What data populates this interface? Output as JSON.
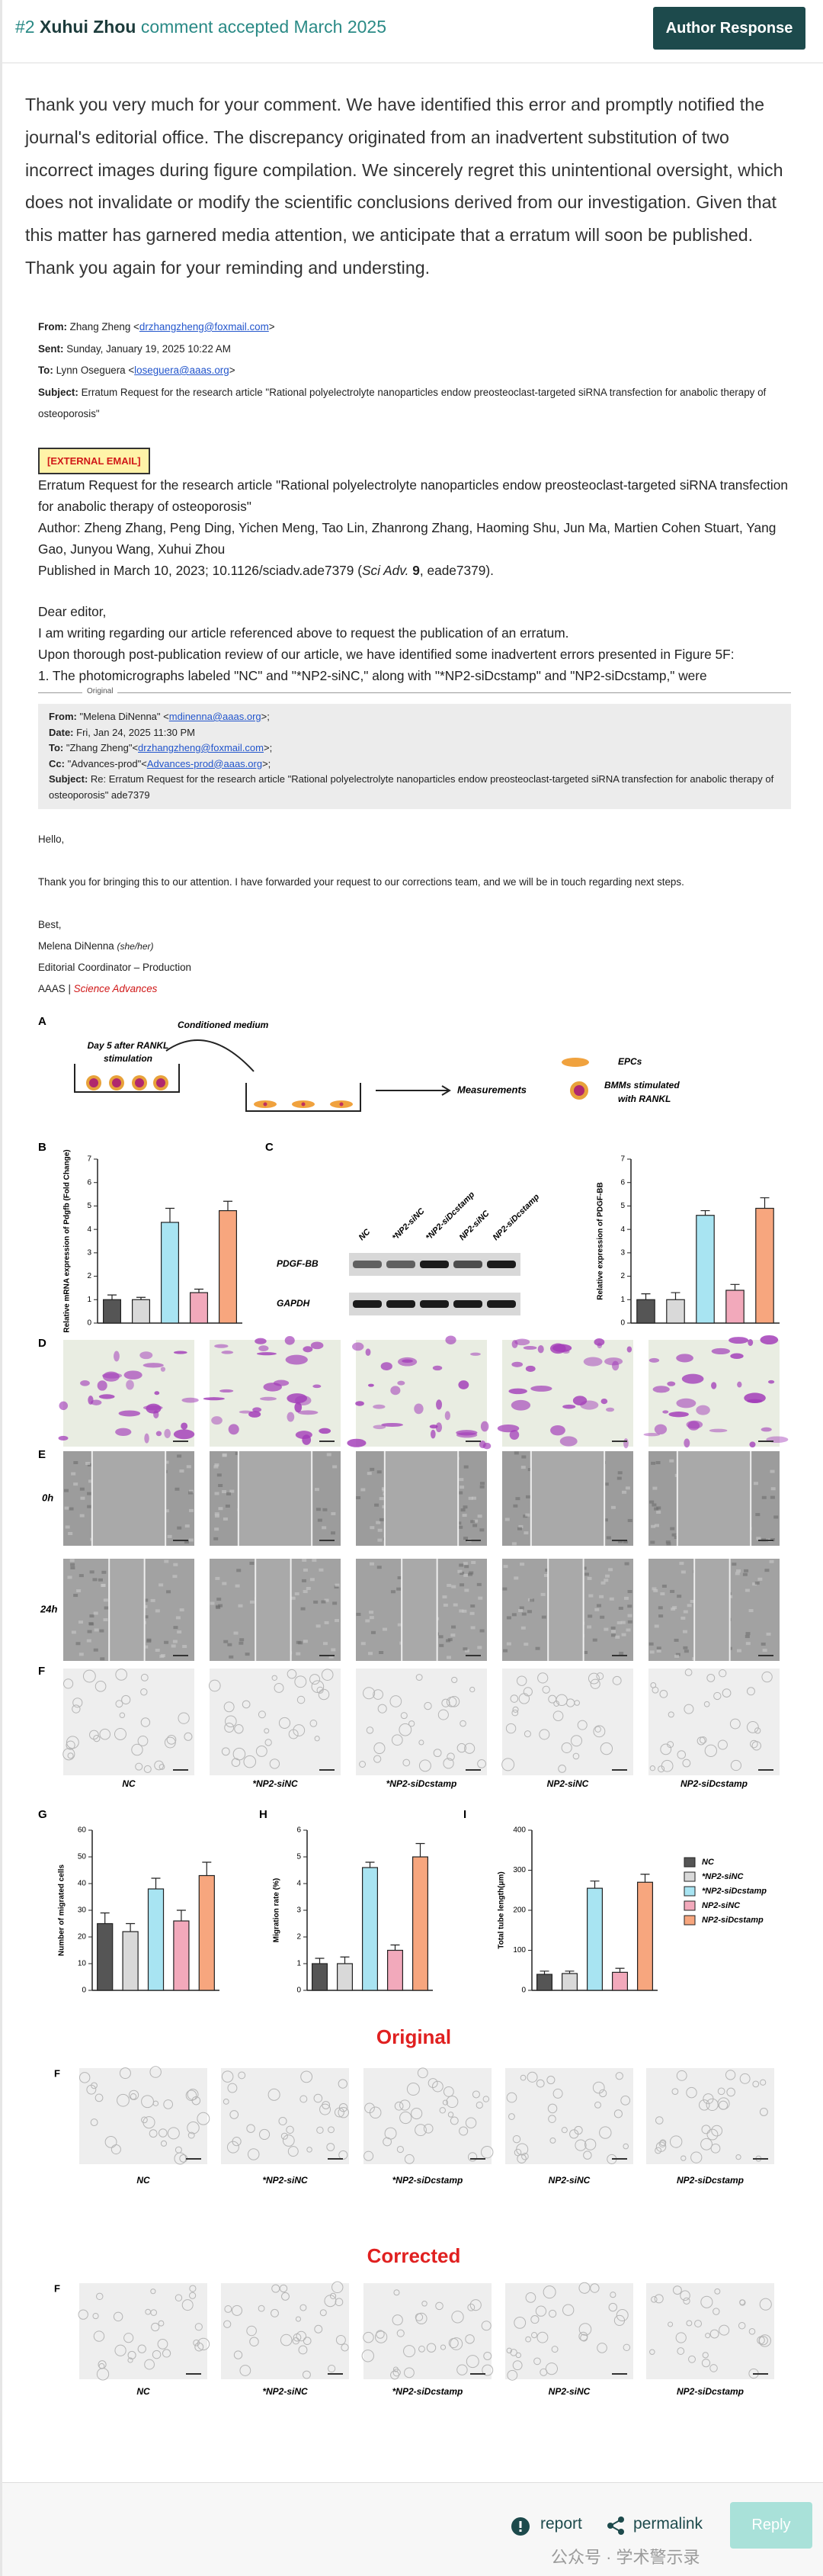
{
  "header": {
    "number": "#2",
    "author": "Xuhui Zhou",
    "status": "comment accepted March 2025",
    "button": "Author Response"
  },
  "comment": "Thank you very much for your comment. We have identified this error and promptly notified the journal's editorial office. The discrepancy originated from an inadvertent substitution of two incorrect images during figure compilation. We sincerely regret this unintentional oversight, which does not invalidate or modify the scientific conclusions derived from our investigation. Given that this matter has garnered media attention, we anticipate that a erratum will soon be published. Thank you again for your reminding and understing.",
  "email": {
    "rows": [
      {
        "label": "From:",
        "text": "Zhang Zheng <",
        "link": "drzhangzheng@foxmail.com",
        "close": ">"
      },
      {
        "label": "Sent:",
        "text": "Sunday, January 19, 2025 10:22 AM"
      },
      {
        "label": "To:",
        "text": "Lynn Oseguera <",
        "link": "loseguera@aaas.org",
        "close": ">"
      },
      {
        "label": "Subject:",
        "text": "Erratum Request for the research article \"Rational polyelectrolyte nanoparticles endow preosteoclast-targeted siRNA transfection for anabolic therapy of osteoporosis\""
      }
    ],
    "external_tag": "[EXTERNAL EMAIL]",
    "title": "Erratum Request for the research article \"Rational polyelectrolyte nanoparticles endow preosteoclast-targeted siRNA transfection for anabolic therapy of osteoporosis\"",
    "authors": "Author: Zheng Zhang, Peng Ding, Yichen Meng, Tao Lin, Zhanrong Zhang, Haoming Shu, Jun Ma, Martien Cohen Stuart, Yang Gao, Junyou Wang, Xuhui Zhou",
    "published": {
      "prefix": "Published in March 10, 2023; 10.1126/sciadv.ade7379 (",
      "journal": "Sci Adv.",
      "volume": "9",
      "suffix": ", eade7379)."
    },
    "letter": [
      "Dear editor,",
      "I am writing regarding our article referenced above to request the publication of an erratum.",
      "Upon thorough post-publication review of our article, we have identified some inadvertent errors presented in Figure 5F:",
      "1. The photomicrographs labeled \"NC\" and \"*NP2-siNC,\" along with \"*NP2-siDcstamp\" and \"NP2-siDcstamp,\" were"
    ],
    "divider": "Original"
  },
  "reply": {
    "rows": [
      {
        "label": "From:",
        "text": "\"Melena DiNenna\" <",
        "link": "mdinenna@aaas.org",
        "close": ">;"
      },
      {
        "label": "Date:",
        "text": "Fri, Jan 24, 2025 11:30 PM"
      },
      {
        "label": "To:",
        "text": "\"Zhang Zheng\"<",
        "link": "drzhangzheng@foxmail.com",
        "close": ">;"
      },
      {
        "label": "Cc:",
        "text": "\"Advances-prod\"<",
        "link": "Advances-prod@aaas.org",
        "close": ">;"
      },
      {
        "label": "Subject:",
        "text": "Re: Erratum Request for the research article \"Rational polyelectrolyte nanoparticles endow preosteoclast-targeted siRNA transfection for anabolic therapy of osteoporosis\" ade7379"
      }
    ],
    "greeting": "Hello,",
    "body": "Thank you for bringing this to our attention. I have forwarded your request to our corrections team, and we will be in touch regarding next steps.",
    "closing": "Best,",
    "name": "Melena DiNenna",
    "pronouns": "(she/her)",
    "role": "Editorial Coordinator – Production",
    "org": "AAAS |",
    "journal": "Science Advances"
  },
  "figure": {
    "panel_a": {
      "letter": "A",
      "stimulation": [
        "Day 5 after RANKL",
        "stimulation"
      ],
      "medium": "Conditioned medium",
      "measurements": "Measurements",
      "epcs": "EPCs",
      "bmms": [
        "BMMs stimulated",
        "with RANKL"
      ]
    },
    "blot": {
      "letter": "C",
      "lanes": [
        "NC",
        "*NP2-siNC",
        "*NP2-siDcstamp",
        "NP2-siNC",
        "NP2-siDcstamp"
      ],
      "rows": [
        "PDGF-BB",
        "GAPDH"
      ]
    },
    "panel_letters": {
      "d": "D",
      "e": "E",
      "f": "F"
    },
    "time_labels": [
      "0h",
      "24h"
    ],
    "groups": [
      "NC",
      "*NP2-siNC",
      "*NP2-siDcstamp",
      "NP2-siNC",
      "NP2-siDcstamp"
    ],
    "legend": {
      "names": [
        "NC",
        "*NP2-siNC",
        "*NP2-siDcstamp",
        "NP2-siNC",
        "NP2-siDcstamp"
      ],
      "colors": [
        "#555555",
        "#d9d9d9",
        "#a8e4f2",
        "#f2a9bb",
        "#f7a67e"
      ]
    },
    "original": {
      "heading": "Original",
      "letter": "F"
    },
    "corrected": {
      "heading": "Corrected",
      "letter": "F"
    }
  },
  "chart_data": [
    {
      "type": "bar",
      "panel": "B",
      "ylabel": "Relative mRNA expression of Pdgfb (Fold Change)",
      "ylim": [
        0,
        7
      ],
      "yticks": [
        0,
        1,
        2,
        3,
        4,
        5,
        6,
        7
      ],
      "values": [
        1.0,
        1.0,
        4.3,
        1.3,
        4.8
      ],
      "errors": [
        0.2,
        0.1,
        0.6,
        0.15,
        0.4
      ],
      "colors": [
        "#555555",
        "#d9d9d9",
        "#a8e4f2",
        "#f2a9bb",
        "#f7a67e"
      ]
    },
    {
      "type": "bar",
      "ylabel": "Relative expression of PDGF-BB",
      "ylim": [
        0,
        7
      ],
      "yticks": [
        0,
        1,
        2,
        3,
        4,
        5,
        6,
        7
      ],
      "values": [
        1.0,
        1.0,
        4.6,
        1.4,
        4.9
      ],
      "errors": [
        0.25,
        0.3,
        0.2,
        0.25,
        0.45
      ],
      "colors": [
        "#555555",
        "#d9d9d9",
        "#a8e4f2",
        "#f2a9bb",
        "#f7a67e"
      ]
    },
    {
      "type": "bar",
      "panel": "G",
      "ylabel": "Number of migrated cells",
      "ylim": [
        0,
        60
      ],
      "yticks": [
        0,
        10,
        20,
        30,
        40,
        50,
        60
      ],
      "values": [
        25,
        22,
        38,
        26,
        43
      ],
      "errors": [
        4,
        3,
        4,
        4,
        5
      ],
      "colors": [
        "#555555",
        "#d9d9d9",
        "#a8e4f2",
        "#f2a9bb",
        "#f7a67e"
      ]
    },
    {
      "type": "bar",
      "panel": "H",
      "ylabel": "Migration rate (%)",
      "ylim": [
        0,
        6
      ],
      "yticks": [
        0,
        1,
        2,
        3,
        4,
        5,
        6
      ],
      "values": [
        1.0,
        1.0,
        4.6,
        1.5,
        5.0
      ],
      "errors": [
        0.2,
        0.25,
        0.2,
        0.2,
        0.5
      ],
      "colors": [
        "#555555",
        "#d9d9d9",
        "#a8e4f2",
        "#f2a9bb",
        "#f7a67e"
      ]
    },
    {
      "type": "bar",
      "panel": "I",
      "ylabel": "Total tube length(μm)",
      "ylim": [
        0,
        400
      ],
      "yticks": [
        0,
        100,
        200,
        300,
        400
      ],
      "values": [
        40,
        42,
        255,
        45,
        270
      ],
      "errors": [
        8,
        6,
        18,
        10,
        20
      ],
      "colors": [
        "#555555",
        "#d9d9d9",
        "#a8e4f2",
        "#f2a9bb",
        "#f7a67e"
      ]
    }
  ],
  "footer": {
    "report": "report",
    "permalink": "permalink",
    "reply": "Reply",
    "watermark": "公众号 · 学术警示录"
  }
}
